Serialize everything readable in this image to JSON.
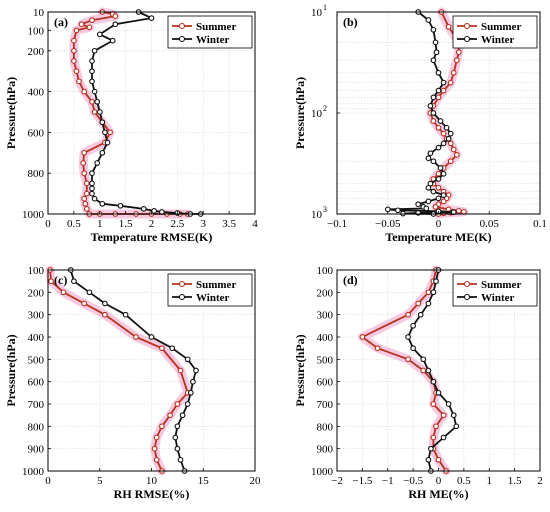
{
  "figure": {
    "background": "#ffffff"
  },
  "colors": {
    "summer": "#b5321e",
    "winter": "#111111",
    "band": "#f4b8d8",
    "grid": "#d6d6d6"
  },
  "chart_data": [
    {
      "id": "a",
      "type": "line",
      "panel_label": "(a)",
      "xlabel": "Temperature RMSE(K)",
      "ylabel": "Pressure(hPa)",
      "xlim": [
        0,
        4
      ],
      "ylim": [
        1000,
        10
      ],
      "yscale": "linear",
      "xticks": [
        "0",
        "0.5",
        "1",
        "1.5",
        "2",
        "2.5",
        "3",
        "3.5",
        "4"
      ],
      "yticks": [
        "10",
        "100",
        "200",
        "400",
        "600",
        "800",
        "1000"
      ],
      "ytick_values": [
        10,
        100,
        200,
        400,
        600,
        800,
        1000
      ],
      "grid": true,
      "legend": "top-right",
      "series": [
        {
          "name": "Summer",
          "band": true,
          "points": [
            [
              1.05,
              10
            ],
            [
              1.25,
              20
            ],
            [
              1.3,
              30
            ],
            [
              0.85,
              50
            ],
            [
              0.65,
              70
            ],
            [
              0.8,
              85
            ],
            [
              0.55,
              100
            ],
            [
              0.5,
              150
            ],
            [
              0.5,
              200
            ],
            [
              0.5,
              250
            ],
            [
              0.55,
              300
            ],
            [
              0.6,
              350
            ],
            [
              0.7,
              400
            ],
            [
              0.85,
              450
            ],
            [
              0.9,
              500
            ],
            [
              1.05,
              550
            ],
            [
              1.2,
              600
            ],
            [
              1.1,
              650
            ],
            [
              0.7,
              700
            ],
            [
              0.68,
              750
            ],
            [
              0.7,
              800
            ],
            [
              0.75,
              850
            ],
            [
              0.75,
              900
            ],
            [
              0.7,
              925
            ],
            [
              0.72,
              950
            ],
            [
              0.75,
              975
            ],
            [
              0.8,
              1000
            ],
            [
              1.0,
              1000
            ],
            [
              1.3,
              1000
            ],
            [
              1.7,
              1000
            ],
            [
              2.0,
              1000
            ],
            [
              2.3,
              1000
            ],
            [
              2.55,
              1000
            ],
            [
              2.7,
              1000
            ]
          ]
        },
        {
          "name": "Winter",
          "band": false,
          "points": [
            [
              1.75,
              10
            ],
            [
              2.0,
              40
            ],
            [
              1.3,
              70
            ],
            [
              1.0,
              120
            ],
            [
              1.25,
              150
            ],
            [
              0.9,
              200
            ],
            [
              0.85,
              250
            ],
            [
              0.85,
              300
            ],
            [
              0.85,
              350
            ],
            [
              0.9,
              400
            ],
            [
              0.95,
              450
            ],
            [
              1.0,
              500
            ],
            [
              1.05,
              550
            ],
            [
              1.1,
              600
            ],
            [
              1.15,
              650
            ],
            [
              1.05,
              700
            ],
            [
              0.95,
              750
            ],
            [
              0.85,
              800
            ],
            [
              0.85,
              850
            ],
            [
              0.85,
              875
            ],
            [
              0.85,
              900
            ],
            [
              0.9,
              925
            ],
            [
              1.05,
              950
            ],
            [
              1.4,
              960
            ],
            [
              1.85,
              975
            ],
            [
              2.05,
              985
            ],
            [
              2.2,
              990
            ],
            [
              2.5,
              995
            ],
            [
              2.75,
              1000
            ],
            [
              2.95,
              1000
            ]
          ]
        }
      ]
    },
    {
      "id": "b",
      "type": "line",
      "panel_label": "(b)",
      "xlabel": "Temperature ME(K)",
      "ylabel": "Pressure(hPa)",
      "xlim": [
        -0.1,
        0.1
      ],
      "ylim": [
        1000,
        10
      ],
      "yscale": "log",
      "xticks": [
        "−0.1",
        "−0.05",
        "0",
        "0.05",
        "0.1"
      ],
      "yticks": [
        "10",
        "10",
        "10"
      ],
      "ytick_exponents": [
        "1",
        "2",
        "3"
      ],
      "ytick_values": [
        10,
        100,
        1000
      ],
      "grid": true,
      "legend": "top-right",
      "series": [
        {
          "name": "Summer",
          "band": true,
          "points": [
            [
              0.003,
              10
            ],
            [
              0.01,
              14
            ],
            [
              0.02,
              20
            ],
            [
              0.02,
              25
            ],
            [
              0.018,
              30
            ],
            [
              0.015,
              40
            ],
            [
              0.012,
              50
            ],
            [
              0.005,
              60
            ],
            [
              0.0,
              70
            ],
            [
              -0.005,
              85
            ],
            [
              -0.008,
              100
            ],
            [
              -0.005,
              120
            ],
            [
              0.0,
              140
            ],
            [
              0.005,
              160
            ],
            [
              0.008,
              180
            ],
            [
              0.012,
              200
            ],
            [
              0.015,
              230
            ],
            [
              0.018,
              260
            ],
            [
              0.012,
              300
            ],
            [
              0.005,
              350
            ],
            [
              0.0,
              400
            ],
            [
              -0.005,
              450
            ],
            [
              -0.005,
              500
            ],
            [
              0.0,
              550
            ],
            [
              0.005,
              600
            ],
            [
              0.01,
              650
            ],
            [
              0.008,
              700
            ],
            [
              0.005,
              750
            ],
            [
              0.0,
              800
            ],
            [
              -0.003,
              850
            ],
            [
              0.01,
              900
            ],
            [
              0.02,
              930
            ],
            [
              0.025,
              950
            ],
            [
              0.012,
              970
            ],
            [
              0.005,
              985
            ],
            [
              0.0,
              1000
            ]
          ]
        },
        {
          "name": "Winter",
          "band": false,
          "points": [
            [
              -0.02,
              10
            ],
            [
              -0.01,
              12
            ],
            [
              -0.005,
              15
            ],
            [
              -0.003,
              20
            ],
            [
              -0.002,
              25
            ],
            [
              -0.005,
              30
            ],
            [
              0.0,
              40
            ],
            [
              0.005,
              50
            ],
            [
              0.0,
              60
            ],
            [
              -0.005,
              70
            ],
            [
              -0.008,
              85
            ],
            [
              -0.005,
              100
            ],
            [
              0.002,
              120
            ],
            [
              0.008,
              140
            ],
            [
              0.012,
              160
            ],
            [
              0.01,
              180
            ],
            [
              0.005,
              200
            ],
            [
              0.0,
              220
            ],
            [
              -0.008,
              250
            ],
            [
              -0.01,
              280
            ],
            [
              -0.005,
              300
            ],
            [
              0.002,
              350
            ],
            [
              0.005,
              400
            ],
            [
              0.0,
              450
            ],
            [
              -0.008,
              500
            ],
            [
              -0.01,
              550
            ],
            [
              -0.005,
              600
            ],
            [
              0.005,
              650
            ],
            [
              0.0,
              700
            ],
            [
              -0.01,
              750
            ],
            [
              -0.02,
              800
            ],
            [
              -0.015,
              850
            ],
            [
              -0.012,
              880
            ],
            [
              -0.05,
              900
            ],
            [
              -0.04,
              920
            ],
            [
              0.0,
              940
            ],
            [
              0.015,
              960
            ],
            [
              -0.02,
              975
            ],
            [
              -0.035,
              990
            ],
            [
              -0.005,
              1000
            ]
          ]
        }
      ]
    },
    {
      "id": "c",
      "type": "line",
      "panel_label": "(c)",
      "xlabel": "RH RMSE(%)",
      "ylabel": "Pressure(hPa)",
      "xlim": [
        0,
        20
      ],
      "ylim": [
        1000,
        100
      ],
      "yscale": "linear",
      "xticks": [
        "0",
        "5",
        "10",
        "15",
        "20"
      ],
      "yticks": [
        "100",
        "200",
        "300",
        "400",
        "500",
        "600",
        "700",
        "800",
        "900",
        "1000"
      ],
      "ytick_values": [
        100,
        200,
        300,
        400,
        500,
        600,
        700,
        800,
        900,
        1000
      ],
      "grid": true,
      "legend": "top-right",
      "series": [
        {
          "name": "Summer",
          "band": true,
          "points": [
            [
              0.2,
              100
            ],
            [
              0.3,
              150
            ],
            [
              1.5,
              200
            ],
            [
              3.5,
              250
            ],
            [
              5.5,
              300
            ],
            [
              8.5,
              400
            ],
            [
              11,
              450
            ],
            [
              12.8,
              550
            ],
            [
              13.5,
              650
            ],
            [
              12.5,
              700
            ],
            [
              11.8,
              750
            ],
            [
              11,
              800
            ],
            [
              10.5,
              850
            ],
            [
              10.3,
              900
            ],
            [
              10.5,
              950
            ],
            [
              11,
              1000
            ]
          ]
        },
        {
          "name": "Winter",
          "band": false,
          "points": [
            [
              2.2,
              100
            ],
            [
              2.5,
              150
            ],
            [
              4.0,
              200
            ],
            [
              5.5,
              250
            ],
            [
              7.5,
              300
            ],
            [
              10,
              400
            ],
            [
              12,
              450
            ],
            [
              13.5,
              500
            ],
            [
              14.3,
              550
            ],
            [
              14,
              600
            ],
            [
              13.8,
              650
            ],
            [
              13.5,
              700
            ],
            [
              13.0,
              750
            ],
            [
              12.5,
              800
            ],
            [
              12.3,
              850
            ],
            [
              12.5,
              900
            ],
            [
              12.8,
              950
            ],
            [
              13.2,
              1000
            ]
          ]
        }
      ]
    },
    {
      "id": "d",
      "type": "line",
      "panel_label": "(d)",
      "xlabel": "RH ME(%)",
      "ylabel": "Pressure(hPa)",
      "xlim": [
        -2,
        2
      ],
      "ylim": [
        1000,
        100
      ],
      "yscale": "linear",
      "xticks": [
        "−2",
        "−1.5",
        "−1",
        "−0.5",
        "0",
        "0.5",
        "1",
        "1.5",
        "2"
      ],
      "yticks": [
        "100",
        "200",
        "300",
        "400",
        "500",
        "600",
        "700",
        "800",
        "900",
        "1000"
      ],
      "ytick_values": [
        100,
        200,
        300,
        400,
        500,
        600,
        700,
        800,
        900,
        1000
      ],
      "grid": true,
      "legend": "top-right",
      "series": [
        {
          "name": "Summer",
          "band": true,
          "points": [
            [
              -0.05,
              100
            ],
            [
              -0.1,
              150
            ],
            [
              -0.2,
              200
            ],
            [
              -0.4,
              250
            ],
            [
              -0.6,
              300
            ],
            [
              -1.5,
              400
            ],
            [
              -1.2,
              450
            ],
            [
              -0.6,
              500
            ],
            [
              -0.3,
              550
            ],
            [
              -0.1,
              600
            ],
            [
              -0.05,
              650
            ],
            [
              -0.1,
              700
            ],
            [
              0.1,
              750
            ],
            [
              -0.05,
              800
            ],
            [
              -0.1,
              850
            ],
            [
              -0.1,
              900
            ],
            [
              0.0,
              950
            ],
            [
              0.15,
              1000
            ]
          ]
        },
        {
          "name": "Winter",
          "band": false,
          "points": [
            [
              0.0,
              100
            ],
            [
              -0.05,
              150
            ],
            [
              -0.1,
              200
            ],
            [
              -0.2,
              250
            ],
            [
              -0.35,
              300
            ],
            [
              -0.5,
              350
            ],
            [
              -0.6,
              400
            ],
            [
              -0.5,
              450
            ],
            [
              -0.3,
              500
            ],
            [
              -0.2,
              550
            ],
            [
              -0.1,
              600
            ],
            [
              0.0,
              650
            ],
            [
              0.2,
              700
            ],
            [
              0.3,
              750
            ],
            [
              0.35,
              800
            ],
            [
              0.1,
              850
            ],
            [
              -0.15,
              900
            ],
            [
              -0.2,
              950
            ],
            [
              -0.15,
              1000
            ]
          ]
        }
      ]
    }
  ]
}
